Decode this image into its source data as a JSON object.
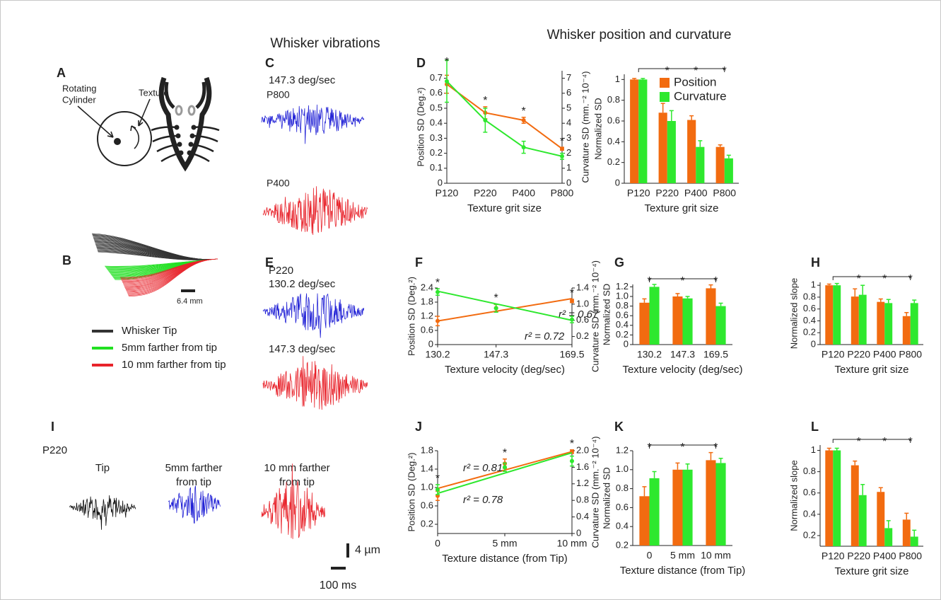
{
  "headings": [
    "Whisker vibrations",
    "Whisker position and curvature"
  ],
  "panel_letters": [
    "A",
    "B",
    "C",
    "E",
    "I"
  ],
  "schematic": {
    "texture": "Texture",
    "cylinder": [
      "Rotating",
      "Cylinder"
    ]
  },
  "whisker_shape": {
    "scale": "6.4 mm",
    "legend": [
      "Whisker Tip",
      "5mm farther from tip",
      "10 mm farther from tip"
    ]
  },
  "vibrations_c": {
    "velocity": "147.3 deg/sec",
    "textures": [
      "P800",
      "P400"
    ]
  },
  "vibrations_e": {
    "texture": "P220",
    "velocities": [
      "130.2 deg/sec",
      "147.3 deg/sec"
    ]
  },
  "vibrations_i": {
    "texture": "P220",
    "traces": [
      [
        "Tip"
      ],
      [
        "5mm farther",
        "from tip"
      ],
      [
        "10 mm farther",
        "from tip"
      ]
    ],
    "scale_y": "4 µm",
    "scale_x": "100 ms"
  },
  "chart_data": [
    {
      "type": "line",
      "panel": "D",
      "categories": [
        "P120",
        "P220",
        "P400",
        "P800"
      ],
      "xlabel": "Texture grit size",
      "ylabel": "Position SD (Deg.²)",
      "y2label": "Curvature SD (mm.⁻² 10⁻⁴)",
      "ylim": [
        0,
        0.75
      ],
      "yticks": [
        0,
        0.1,
        0.2,
        0.3,
        0.4,
        0.5,
        0.6,
        0.7
      ],
      "y2lim": [
        0,
        7.5
      ],
      "y2ticks": [
        0,
        1,
        2,
        3,
        4,
        5,
        6,
        7
      ],
      "series": [
        {
          "color": "#f26b10",
          "values": [
            0.66,
            0.47,
            0.42,
            0.23
          ],
          "errors": [
            0.06,
            0.04,
            0.02,
            0.01
          ]
        },
        {
          "color": "#2ee82e",
          "axis": "y2",
          "values": [
            6.8,
            4.2,
            2.4,
            1.8
          ],
          "errors": [
            1.4,
            0.8,
            0.4,
            0.2
          ]
        }
      ],
      "significance": {
        "text": "*",
        "at": [
          "P120",
          "P220",
          "P400",
          "P800"
        ]
      }
    },
    {
      "type": "bar",
      "categories": [
        "P120",
        "P220",
        "P400",
        "P800"
      ],
      "xlabel": "Texture grit size",
      "ylabel": "Normalized SD",
      "ylim": [
        0,
        1.05
      ],
      "yticks": [
        0,
        0.2,
        0.4,
        0.6,
        0.8,
        1
      ],
      "legend": "upper right",
      "series": [
        {
          "name": "Position",
          "color": "#f26b10",
          "values": [
            1,
            0.68,
            0.61,
            0.35
          ],
          "errors": [
            0.01,
            0.09,
            0.04,
            0.02
          ]
        },
        {
          "name": "Curvature",
          "color": "#2ee82e",
          "values": [
            1,
            0.6,
            0.35,
            0.24
          ],
          "errors": [
            0.01,
            0.1,
            0.06,
            0.03
          ]
        }
      ],
      "significance": {
        "text": "*",
        "at": [
          "P220",
          "P400",
          "P800"
        ]
      }
    },
    {
      "type": "line",
      "panel": "F",
      "x": [
        130.2,
        147.3,
        169.5
      ],
      "xlim": [
        130.2,
        169.5
      ],
      "xticks": [
        130.2,
        147.3,
        169.5
      ],
      "xlabel": "Texture velocity (deg/sec)",
      "ylabel": "Position SD (Deg.²)",
      "y2label": "Curvature SD (mm.⁻² 10⁻⁴)",
      "ylim": [
        0,
        2.4
      ],
      "yticks": [
        0,
        0.6,
        1.2,
        1.8,
        2.4
      ],
      "y2lim": [
        0,
        1.4
      ],
      "y2ticks": [
        0.2,
        0.6,
        {
          "value": 1,
          "label": "1.0"
        },
        1.4
      ],
      "series": [
        {
          "color": "#f26b10",
          "values": [
            1.0,
            1.55,
            1.85
          ],
          "errors": [
            0.2,
            0.15,
            0.07
          ],
          "fit": [
            1.0,
            1.95
          ],
          "fit_label": "r² = 0.67"
        },
        {
          "color": "#2ee82e",
          "axis": "y2",
          "values": [
            1.3,
            0.9,
            0.62
          ],
          "errors": [
            0.08,
            0.1,
            0.08
          ],
          "fit": [
            1.32,
            0.6
          ],
          "fit_label": "r² = 0.72"
        }
      ],
      "significance": {
        "text": "*",
        "at": [
          130.2,
          147.3,
          169.5
        ]
      }
    },
    {
      "type": "bar",
      "panel": "G",
      "categories": [
        "130.2",
        "147.3",
        "169.5"
      ],
      "xlabel": "Texture velocity (deg/sec)",
      "ylabel": "Normalized SD",
      "ylim": [
        0,
        1.25
      ],
      "yticks": [
        0,
        0.2,
        0.4,
        0.6,
        0.8,
        {
          "value": 1,
          "label": "1.0"
        },
        1.2
      ],
      "series": [
        {
          "color": "#f26b10",
          "values": [
            0.87,
            1.0,
            1.17
          ],
          "errors": [
            0.08,
            0.06,
            0.07
          ]
        },
        {
          "color": "#2ee82e",
          "values": [
            1.2,
            0.96,
            0.8
          ],
          "errors": [
            0.05,
            0.04,
            0.06
          ]
        }
      ],
      "significance": {
        "text": "*",
        "at": [
          "130.2",
          "147.3",
          "169.5"
        ]
      }
    },
    {
      "type": "bar",
      "panel": "H",
      "categories": [
        "P120",
        "P220",
        "P400",
        "P800"
      ],
      "xlabel": "Texture grit size",
      "ylabel": "Normalized slope",
      "ylim": [
        0,
        1.05
      ],
      "yticks": [
        0,
        0.2,
        0.4,
        0.6,
        0.8,
        1
      ],
      "series": [
        {
          "color": "#f26b10",
          "values": [
            1,
            0.81,
            0.72,
            0.48
          ],
          "errors": [
            0.02,
            0.13,
            0.05,
            0.06
          ]
        },
        {
          "color": "#2ee82e",
          "values": [
            1,
            0.84,
            0.7,
            0.7
          ],
          "errors": [
            0.03,
            0.16,
            0.06,
            0.05
          ]
        }
      ],
      "significance": {
        "text": "*",
        "at": [
          "P220",
          "P400",
          "P800"
        ]
      }
    },
    {
      "type": "line",
      "panel": "J",
      "x": [
        0,
        5,
        10
      ],
      "xlim": [
        0,
        10
      ],
      "xticks": [
        0,
        {
          "value": 5,
          "label": "5 mm"
        },
        {
          "value": 10,
          "label": "10 mm"
        }
      ],
      "xlabel": "Texture distance (from Tip)",
      "ylabel": "Position SD (Deg.²)",
      "y2label": "Curvature SD (mm.⁻² 10⁻⁴)",
      "ylim": [
        0,
        1.8
      ],
      "yticks": [
        0.2,
        0.6,
        {
          "value": 1,
          "label": "1.0"
        },
        1.4,
        1.8
      ],
      "y2lim": [
        0,
        2
      ],
      "y2ticks": [
        0,
        0.4,
        0.8,
        1.2,
        1.6,
        {
          "value": 2,
          "label": "2.0"
        }
      ],
      "series": [
        {
          "color": "#f26b10",
          "values": [
            0.82,
            1.52,
            1.78
          ],
          "errors": [
            0.1,
            0.1,
            0.04
          ],
          "fit": [
            0.98,
            1.78
          ],
          "fit_label": "r² = 0.81"
        },
        {
          "color": "#2ee82e",
          "axis": "y2",
          "values": [
            1.06,
            1.6,
            1.75
          ],
          "errors": [
            0.12,
            0.1,
            0.12
          ],
          "fit": [
            0.97,
            1.95
          ],
          "fit_label": "r² = 0.78"
        }
      ],
      "significance": {
        "text": "*",
        "at": [
          0,
          5,
          10
        ]
      }
    },
    {
      "type": "bar",
      "panel": "K",
      "categories": [
        "0",
        "5 mm",
        "10 mm"
      ],
      "xlabel": "Texture distance (from Tip)",
      "ylabel": "Normalized SD",
      "ylim": [
        0.2,
        1.2
      ],
      "yticks": [
        0.2,
        0.4,
        0.6,
        0.8,
        {
          "value": 1,
          "label": "1.0"
        },
        1.2
      ],
      "series": [
        {
          "color": "#f26b10",
          "values": [
            0.72,
            1.0,
            1.1
          ],
          "errors": [
            0.1,
            0.07,
            0.08
          ]
        },
        {
          "color": "#2ee82e",
          "values": [
            0.91,
            1.0,
            1.07
          ],
          "errors": [
            0.07,
            0.06,
            0.05
          ]
        }
      ],
      "significance": {
        "text": "*",
        "at": [
          "0",
          "5 mm",
          "10 mm"
        ]
      }
    },
    {
      "type": "bar",
      "panel": "L",
      "categories": [
        "P120",
        "P220",
        "P400",
        "P800"
      ],
      "xlabel": "Texture grit size",
      "ylabel": "Normalized slope",
      "ylim": [
        0.1,
        1.05
      ],
      "yticks": [
        0.2,
        0.4,
        0.6,
        0.8,
        1
      ],
      "series": [
        {
          "color": "#f26b10",
          "values": [
            1,
            0.86,
            0.61,
            0.35
          ],
          "errors": [
            0.02,
            0.04,
            0.04,
            0.06
          ]
        },
        {
          "color": "#2ee82e",
          "values": [
            1,
            0.58,
            0.27,
            0.19
          ],
          "errors": [
            0.02,
            0.1,
            0.07,
            0.06
          ]
        }
      ],
      "significance": {
        "text": "*",
        "at": [
          "P220",
          "P400",
          "P800"
        ]
      }
    }
  ]
}
